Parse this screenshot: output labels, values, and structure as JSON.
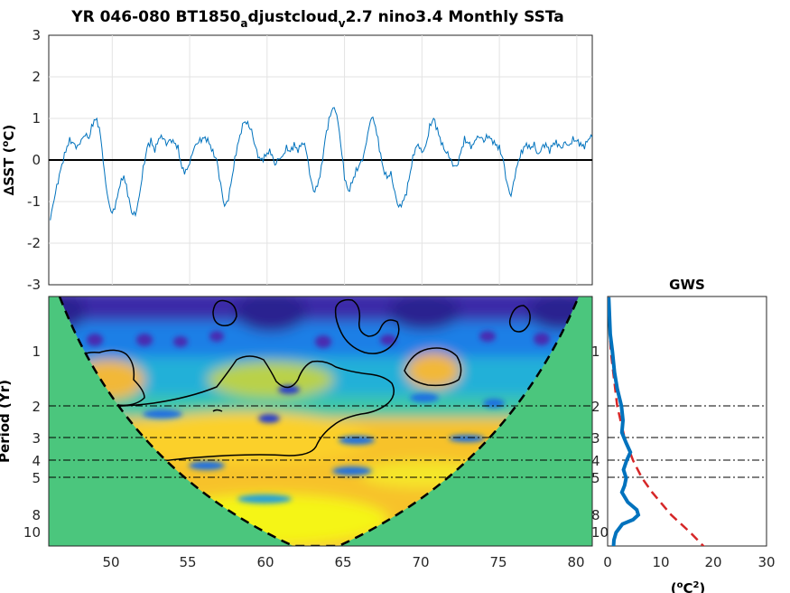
{
  "chart_data": [
    {
      "type": "line",
      "title_parts": {
        "a": "YR 046-080 BT1850",
        "b": "a",
        "c": "djustcloud",
        "d": "v",
        "e": "2.7 nino3.4 Monthly SSTa"
      },
      "ylabel_parts": {
        "delta": "∆SST (",
        "deg": "o",
        "unit": "C)"
      },
      "xlim": [
        45.9,
        81
      ],
      "ylim": [
        -3,
        3
      ],
      "grid": true,
      "yticks": [
        "3",
        "2",
        "1",
        "0",
        "-1",
        "-2",
        "-3"
      ],
      "line_color": "#0072BD",
      "zero_line": 0,
      "x": [
        46.0,
        46.25,
        46.5,
        46.75,
        47.0,
        47.25,
        47.5,
        47.75,
        48.0,
        48.25,
        48.5,
        48.75,
        49.0,
        49.25,
        49.5,
        49.75,
        50.0,
        50.25,
        50.5,
        50.75,
        51.0,
        51.25,
        51.5,
        51.75,
        52.0,
        52.25,
        52.5,
        52.75,
        53.0,
        53.25,
        53.5,
        53.75,
        54.0,
        54.25,
        54.5,
        54.75,
        55.0,
        55.25,
        55.5,
        55.75,
        56.0,
        56.25,
        56.5,
        56.75,
        57.0,
        57.25,
        57.5,
        57.75,
        58.0,
        58.25,
        58.5,
        58.75,
        59.0,
        59.25,
        59.5,
        59.75,
        60.0,
        60.25,
        60.5,
        60.75,
        61.0,
        61.25,
        61.5,
        61.75,
        62.0,
        62.25,
        62.5,
        62.75,
        63.0,
        63.25,
        63.5,
        63.75,
        64.0,
        64.25,
        64.5,
        64.75,
        65.0,
        65.25,
        65.5,
        65.75,
        66.0,
        66.25,
        66.5,
        66.75,
        67.0,
        67.25,
        67.5,
        67.75,
        68.0,
        68.25,
        68.5,
        68.75,
        69.0,
        69.25,
        69.5,
        69.75,
        70.0,
        70.25,
        70.5,
        70.75,
        71.0,
        71.25,
        71.5,
        71.75,
        72.0,
        72.25,
        72.5,
        72.75,
        73.0,
        73.25,
        73.5,
        73.75,
        74.0,
        74.25,
        74.5,
        74.75,
        75.0,
        75.25,
        75.5,
        75.75,
        76.0,
        76.25,
        76.5,
        76.75,
        77.0,
        77.25,
        77.5,
        77.75,
        78.0,
        78.25,
        78.5,
        78.75,
        79.0,
        79.25,
        79.5,
        79.75,
        80.0,
        80.25,
        80.5,
        80.75,
        81.0
      ],
      "y": [
        -1.45,
        -0.95,
        -0.5,
        -0.1,
        0.25,
        0.5,
        0.4,
        0.3,
        0.45,
        0.6,
        0.5,
        0.9,
        1.0,
        0.6,
        -0.3,
        -1.0,
        -1.3,
        -1.05,
        -0.6,
        -0.4,
        -0.8,
        -1.25,
        -1.3,
        -0.85,
        -0.2,
        0.3,
        0.45,
        0.2,
        0.5,
        0.55,
        0.4,
        0.5,
        0.45,
        0.3,
        -0.2,
        -0.3,
        -0.1,
        0.25,
        0.4,
        0.5,
        0.55,
        0.45,
        0.2,
        0.0,
        -0.6,
        -1.15,
        -0.95,
        -0.4,
        0.2,
        0.6,
        0.95,
        0.9,
        0.7,
        0.3,
        0.0,
        0.0,
        0.15,
        0.2,
        -0.1,
        0.05,
        0.1,
        0.3,
        0.2,
        0.35,
        0.2,
        0.4,
        0.3,
        -0.3,
        -0.75,
        -0.6,
        -0.2,
        0.5,
        0.95,
        1.25,
        1.1,
        0.4,
        -0.4,
        -0.75,
        -0.5,
        -0.25,
        -0.1,
        0.1,
        0.6,
        1.05,
        0.8,
        0.3,
        -0.2,
        -0.4,
        -0.3,
        -0.8,
        -1.15,
        -1.05,
        -0.8,
        -0.3,
        0.2,
        0.4,
        0.2,
        0.35,
        0.8,
        1.0,
        0.7,
        0.4,
        0.2,
        0.1,
        -0.1,
        -0.15,
        0.2,
        0.5,
        0.4,
        0.3,
        0.5,
        0.55,
        0.45,
        0.6,
        0.5,
        0.4,
        0.3,
        0.0,
        -0.6,
        -0.9,
        -0.4,
        0.0,
        0.25,
        0.4,
        0.3,
        0.4,
        0.1,
        0.3,
        0.35,
        0.2,
        0.4,
        0.4,
        0.3,
        0.45,
        0.35,
        0.5,
        0.45,
        0.35,
        0.3,
        0.5,
        0.55
      ]
    },
    {
      "type": "heatmap",
      "ylabel": "Period (Yr)",
      "xlim": [
        45.9,
        81
      ],
      "xticks": [
        "50",
        "55",
        "60",
        "65",
        "70",
        "75",
        "80"
      ],
      "yticks": [
        "1",
        "2",
        "3",
        "4",
        "5",
        "8",
        "10"
      ],
      "period_range": [
        0.5,
        12
      ],
      "log_period": true,
      "coi_color": "#4BC67D",
      "reference_lines": [
        2,
        3,
        4,
        5
      ],
      "colors": {
        "low": "#3b2aa8",
        "mid_low": "#1f9de0",
        "mid": "#2cc3b4",
        "high": "#f7c22a",
        "peak": "#f5f519"
      }
    },
    {
      "type": "line",
      "title": "GWS",
      "xlabel_parts": {
        "open": "(",
        "deg": "o",
        "mid": "C",
        "sq": "2",
        "close": ")"
      },
      "xlim": [
        0,
        30
      ],
      "xticks": [
        "0",
        "10",
        "20",
        "30"
      ],
      "yticks": [
        "1",
        "2",
        "3",
        "4",
        "5",
        "8",
        "10"
      ],
      "reference_lines": [
        2,
        3,
        4,
        5
      ],
      "series": [
        {
          "period": [
            0.5,
            0.8,
            1,
            1.3,
            1.6,
            2,
            2.4,
            2.8,
            3.2,
            3.6,
            4,
            4.5,
            5,
            5.5,
            6,
            6.8,
            7.5,
            8,
            8.5,
            9,
            10,
            11,
            12
          ],
          "power": [
            0.2,
            0.5,
            0.9,
            1.3,
            1.8,
            2.6,
            2.9,
            2.7,
            3.5,
            4.3,
            3.6,
            3.0,
            3.5,
            3.2,
            2.7,
            3.8,
            5.5,
            5.8,
            4.8,
            2.8,
            1.6,
            1.2,
            1.1
          ],
          "color": "#0072BD"
        },
        {
          "period": [
            0.5,
            1,
            2,
            3,
            4,
            5,
            6,
            8,
            10,
            12
          ],
          "power": [
            0.1,
            0.6,
            1.8,
            3.2,
            4.8,
            6.5,
            8.4,
            12.0,
            15.6,
            18.2
          ],
          "color": "#D62728",
          "dashed": true
        }
      ]
    }
  ]
}
